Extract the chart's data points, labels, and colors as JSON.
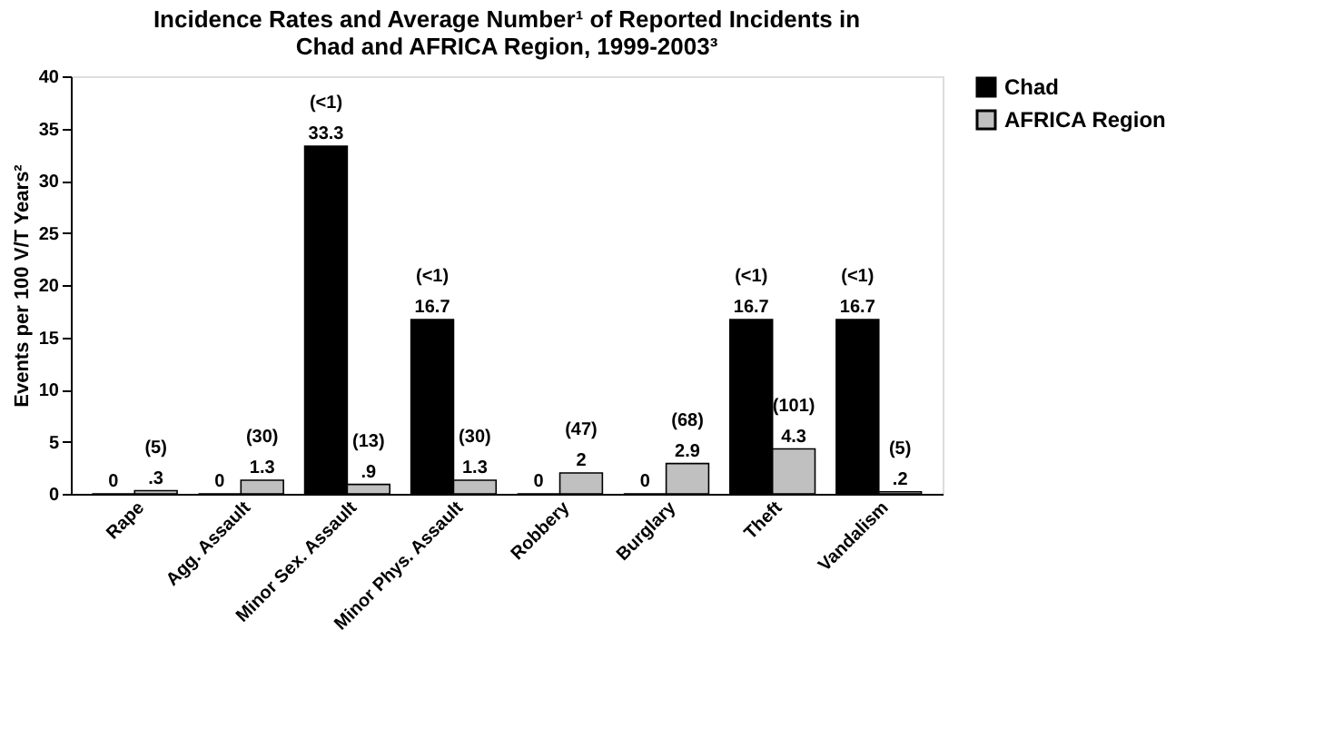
{
  "chart_data": {
    "type": "bar",
    "title": "Incidence Rates and Average Number¹ of Reported Incidents in\nChad and AFRICA Region, 1999-2003³",
    "ylabel": "Events per 100 V/T Years²",
    "categories": [
      "Rape",
      "Agg. Assault",
      "Minor Sex. Assault",
      "Minor Phys. Assault",
      "Robbery",
      "Burglary",
      "Theft",
      "Vandalism"
    ],
    "series": [
      {
        "name": "Chad",
        "color": "#000000",
        "values": [
          0,
          0,
          33.3,
          16.7,
          0,
          0,
          16.7,
          16.7
        ],
        "value_labels": [
          "0",
          "0",
          "33.3",
          "16.7",
          "0",
          "0",
          "16.7",
          "16.7"
        ]
      },
      {
        "name": "AFRICA Region",
        "color": "#c0c0c0",
        "values": [
          0.3,
          1.3,
          0.9,
          1.3,
          2,
          2.9,
          4.3,
          0.2
        ],
        "value_labels": [
          ".3",
          "1.3",
          ".9",
          "1.3",
          "2",
          "2.9",
          "4.3",
          ".2"
        ]
      }
    ],
    "annotations": [
      {
        "text": "(5)",
        "x": "Rape",
        "y": 0.3
      },
      {
        "text": "(30)",
        "x": "Agg. Assault",
        "y": 1.3
      },
      {
        "text": "(<1)",
        "x": "Minor Sex. Assault",
        "y": 33.3
      },
      {
        "text": "(13)",
        "x": "Minor Sex. Assault",
        "y": 0.9
      },
      {
        "text": "(<1)",
        "x": "Minor Phys. Assault",
        "y": 16.7
      },
      {
        "text": "(30)",
        "x": "Minor Phys. Assault",
        "y": 1.3
      },
      {
        "text": "(47)",
        "x": "Robbery",
        "y": 2
      },
      {
        "text": "(68)",
        "x": "Burglary",
        "y": 2.9
      },
      {
        "text": "(<1)",
        "x": "Theft",
        "y": 16.7
      },
      {
        "text": "(101)",
        "x": "Theft",
        "y": 4.3
      },
      {
        "text": "(<1)",
        "x": "Vandalism",
        "y": 16.7
      },
      {
        "text": "(5)",
        "x": "Vandalism",
        "y": 0.2
      }
    ],
    "ylim": [
      0,
      40
    ],
    "yticks": [
      0,
      5,
      10,
      15,
      20,
      25,
      30,
      35,
      40
    ],
    "grid": false,
    "legend": "right"
  }
}
